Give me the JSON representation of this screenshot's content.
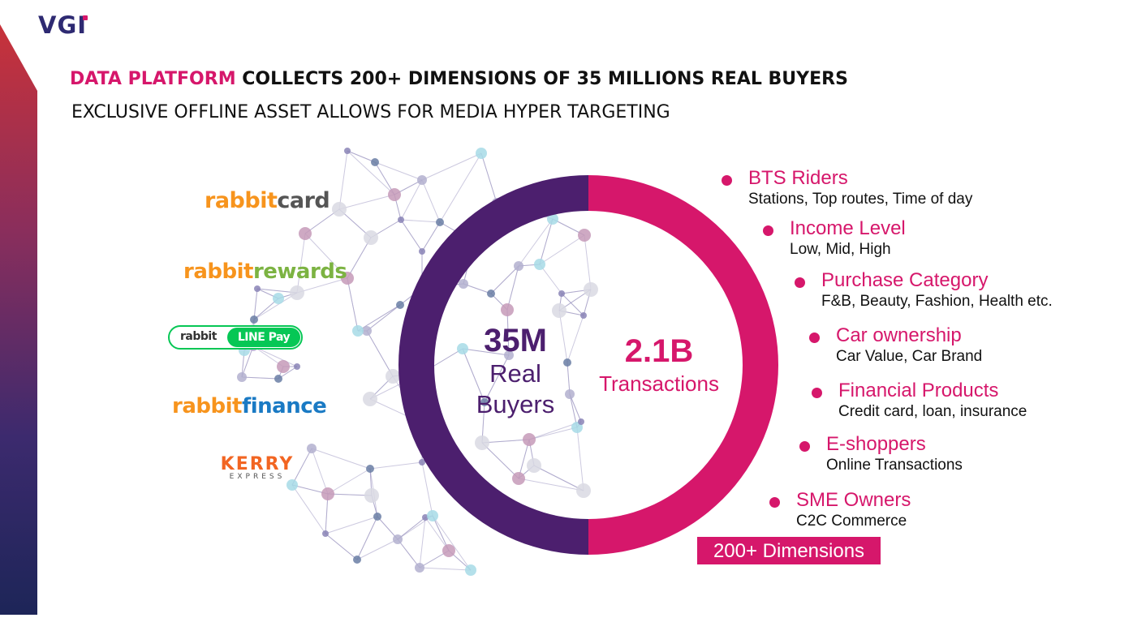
{
  "logo": {
    "text": "VGI"
  },
  "headline": {
    "highlight": "DATA PLATFORM",
    "rest": " COLLECTS 200+ DIMENSIONS OF 35 MILLIONS REAL BUYERS"
  },
  "subheadline": "EXCLUSIVE OFFLINE ASSET ALLOWS FOR MEDIA HYPER TARGETING",
  "brands": {
    "rabbit_card": {
      "a": "rabbit",
      "b": "card"
    },
    "rabbit_rewards": {
      "a": "rabbit",
      "b": "rewards"
    },
    "rabbit_linepay": {
      "a": "rabbit",
      "b": "LINE Pay"
    },
    "rabbit_finance": {
      "a": "rabbit",
      "b": "finance"
    },
    "kerry": {
      "a": "KERRY",
      "b": "EXPRESS"
    }
  },
  "center": {
    "buyers_value": "35M",
    "buyers_label_1": "Real",
    "buyers_label_2": "Buyers",
    "transactions_value": "2.1B",
    "transactions_label": "Transactions"
  },
  "dimensions": [
    {
      "title": "BTS Riders",
      "detail": "Stations, Top routes, Time of day"
    },
    {
      "title": "Income Level",
      "detail": "Low, Mid, High"
    },
    {
      "title": "Purchase Category",
      "detail": "F&B, Beauty, Fashion, Health etc."
    },
    {
      "title": "Car ownership",
      "detail": "Car Value, Car Brand"
    },
    {
      "title": "Financial Products",
      "detail": "Credit card, loan, insurance"
    },
    {
      "title": "E-shoppers",
      "detail": "Online Transactions"
    },
    {
      "title": "SME Owners",
      "detail": "C2C Commerce"
    }
  ],
  "dimensions_badge": "200+ Dimensions",
  "colors": {
    "accent": "#d6176b",
    "purple": "#4c1f6e",
    "navy": "#2e2a72"
  }
}
